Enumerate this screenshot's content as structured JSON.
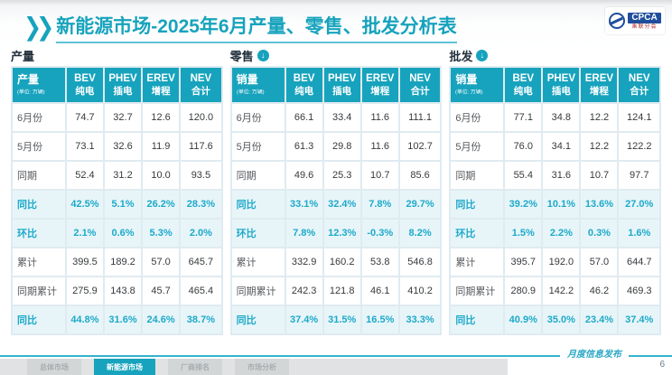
{
  "title": "新能源市场-2025年6月产量、零售、批发分析表",
  "logo": {
    "name": "CPCA",
    "subtitle": "乘联分会"
  },
  "unit_note": "(单位: 万辆)",
  "column_headers": [
    {
      "top": "BEV",
      "bottom": "纯电"
    },
    {
      "top": "PHEV",
      "bottom": "插电"
    },
    {
      "top": "EREV",
      "bottom": "增程"
    },
    {
      "top": "NEV",
      "bottom": "合计"
    }
  ],
  "colors": {
    "accent": "#17a3bd",
    "percent_text": "#1ea9c9",
    "highlight_row_bg": "#e7f5f9"
  },
  "sections": [
    {
      "id": "production",
      "title": "产量",
      "has_arrow_icon": false,
      "corner_label": "产量",
      "rows": [
        {
          "label": "6月份",
          "values": [
            "74.7",
            "32.7",
            "12.6",
            "120.0"
          ],
          "highlight": false
        },
        {
          "label": "5月份",
          "values": [
            "73.1",
            "32.6",
            "11.9",
            "117.6"
          ],
          "highlight": false
        },
        {
          "label": "同期",
          "values": [
            "52.4",
            "31.2",
            "10.0",
            "93.5"
          ],
          "highlight": false
        },
        {
          "label": "同比",
          "values": [
            "42.5%",
            "5.1%",
            "26.2%",
            "28.3%"
          ],
          "highlight": true
        },
        {
          "label": "环比",
          "values": [
            "2.1%",
            "0.6%",
            "5.3%",
            "2.0%"
          ],
          "highlight": true
        },
        {
          "label": "累计",
          "values": [
            "399.5",
            "189.2",
            "57.0",
            "645.7"
          ],
          "highlight": false
        },
        {
          "label": "同期累计",
          "values": [
            "275.9",
            "143.8",
            "45.7",
            "465.4"
          ],
          "highlight": false
        },
        {
          "label": "同比",
          "values": [
            "44.8%",
            "31.6%",
            "24.6%",
            "38.7%"
          ],
          "highlight": true
        }
      ]
    },
    {
      "id": "retail",
      "title": "零售",
      "has_arrow_icon": true,
      "corner_label": "销量",
      "rows": [
        {
          "label": "6月份",
          "values": [
            "66.1",
            "33.4",
            "11.6",
            "111.1"
          ],
          "highlight": false
        },
        {
          "label": "5月份",
          "values": [
            "61.3",
            "29.8",
            "11.6",
            "102.7"
          ],
          "highlight": false
        },
        {
          "label": "同期",
          "values": [
            "49.6",
            "25.3",
            "10.7",
            "85.6"
          ],
          "highlight": false
        },
        {
          "label": "同比",
          "values": [
            "33.1%",
            "32.4%",
            "7.8%",
            "29.7%"
          ],
          "highlight": true
        },
        {
          "label": "环比",
          "values": [
            "7.8%",
            "12.3%",
            "-0.3%",
            "8.2%"
          ],
          "highlight": true
        },
        {
          "label": "累计",
          "values": [
            "332.9",
            "160.2",
            "53.8",
            "546.8"
          ],
          "highlight": false
        },
        {
          "label": "同期累计",
          "values": [
            "242.3",
            "121.8",
            "46.1",
            "410.2"
          ],
          "highlight": false
        },
        {
          "label": "同比",
          "values": [
            "37.4%",
            "31.5%",
            "16.5%",
            "33.3%"
          ],
          "highlight": true
        }
      ]
    },
    {
      "id": "wholesale",
      "title": "批发",
      "has_arrow_icon": true,
      "corner_label": "销量",
      "rows": [
        {
          "label": "6月份",
          "values": [
            "77.1",
            "34.8",
            "12.2",
            "124.1"
          ],
          "highlight": false
        },
        {
          "label": "5月份",
          "values": [
            "76.0",
            "34.1",
            "12.2",
            "122.2"
          ],
          "highlight": false
        },
        {
          "label": "同期",
          "values": [
            "55.4",
            "31.6",
            "10.7",
            "97.7"
          ],
          "highlight": false
        },
        {
          "label": "同比",
          "values": [
            "39.2%",
            "10.1%",
            "13.6%",
            "27.0%"
          ],
          "highlight": true
        },
        {
          "label": "环比",
          "values": [
            "1.5%",
            "2.2%",
            "0.3%",
            "1.6%"
          ],
          "highlight": true
        },
        {
          "label": "累计",
          "values": [
            "395.7",
            "192.0",
            "57.0",
            "644.7"
          ],
          "highlight": false
        },
        {
          "label": "同期累计",
          "values": [
            "280.9",
            "142.2",
            "46.2",
            "469.3"
          ],
          "highlight": false
        },
        {
          "label": "同比",
          "values": [
            "40.9%",
            "35.0%",
            "23.4%",
            "37.4%"
          ],
          "highlight": true
        }
      ]
    }
  ],
  "footer": {
    "label": "月度信息发布",
    "page": "6"
  },
  "tabs": [
    {
      "label": "总体市场",
      "active": false
    },
    {
      "label": "新能源市场",
      "active": true
    },
    {
      "label": "厂商排名",
      "active": false
    },
    {
      "label": "市场分析",
      "active": false
    }
  ],
  "icons": {
    "chevrons": "❯❯",
    "down_arrow": "↓"
  }
}
